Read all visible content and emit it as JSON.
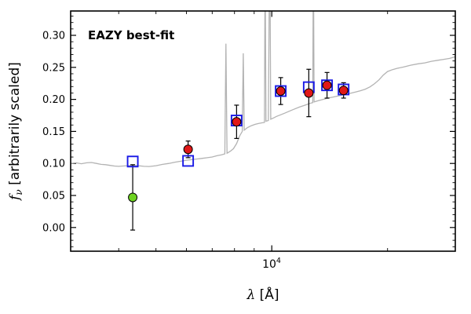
{
  "annotation_note": "static scientific plot, no interactive widgets",
  "labels": {
    "y_math": "f",
    "y_sub": "ν",
    "y_rest": " [arbitrarily scaled]",
    "x_math": "λ",
    "x_rest": " [Å]",
    "xtick_base": "10",
    "xtick_exp": "4"
  },
  "chart_data": {
    "type": "line+scatter",
    "title": "",
    "xlabel": "λ [Å]",
    "ylabel": "fν [arbitrarily scaled]",
    "x_scale": "log",
    "xlim": [
      3000,
      30000
    ],
    "ylim": [
      -0.037,
      0.338
    ],
    "grid": false,
    "legend": "none",
    "annotation": {
      "text": "EAZY best-fit",
      "color": "#ff0000"
    },
    "y_ticks": [
      0.0,
      0.05,
      0.1,
      0.15,
      0.2,
      0.25,
      0.3
    ],
    "y_minor_step": 0.01,
    "x_major_ticks": [
      10000
    ],
    "x_major_tick_labels": [
      "10⁴"
    ],
    "x_minor_ticks": [
      3000,
      4000,
      5000,
      6000,
      7000,
      8000,
      9000,
      20000,
      30000
    ],
    "series": [
      {
        "name": "model-spectrum",
        "type": "line",
        "color": "#b3b3b3",
        "width": 1.3,
        "points": [
          [
            3000,
            0.1
          ],
          [
            3100,
            0.101
          ],
          [
            3200,
            0.0995
          ],
          [
            3300,
            0.101
          ],
          [
            3400,
            0.1015
          ],
          [
            3500,
            0.1
          ],
          [
            3600,
            0.0985
          ],
          [
            3700,
            0.098
          ],
          [
            3800,
            0.097
          ],
          [
            3900,
            0.096
          ],
          [
            4000,
            0.0955
          ],
          [
            4100,
            0.096
          ],
          [
            4200,
            0.0965
          ],
          [
            4350,
            0.097
          ],
          [
            4500,
            0.0965
          ],
          [
            4650,
            0.0955
          ],
          [
            4800,
            0.0952
          ],
          [
            5000,
            0.0965
          ],
          [
            5200,
            0.0985
          ],
          [
            5400,
            0.1
          ],
          [
            5600,
            0.102
          ],
          [
            5800,
            0.1035
          ],
          [
            6000,
            0.105
          ],
          [
            6200,
            0.106
          ],
          [
            6400,
            0.107
          ],
          [
            6600,
            0.108
          ],
          [
            6800,
            0.109
          ],
          [
            7000,
            0.11
          ],
          [
            7200,
            0.112
          ],
          [
            7400,
            0.1135
          ],
          [
            7550,
            0.115
          ],
          [
            7600,
            0.287
          ],
          [
            7650,
            0.116
          ],
          [
            7800,
            0.119
          ],
          [
            7950,
            0.123
          ],
          [
            8100,
            0.131
          ],
          [
            8250,
            0.143
          ],
          [
            8380,
            0.15
          ],
          [
            8430,
            0.272
          ],
          [
            8480,
            0.152
          ],
          [
            8650,
            0.156
          ],
          [
            8850,
            0.159
          ],
          [
            9050,
            0.161
          ],
          [
            9250,
            0.1625
          ],
          [
            9450,
            0.1635
          ],
          [
            9570,
            0.164
          ],
          [
            9610,
            0.43
          ],
          [
            9660,
            0.166
          ],
          [
            9800,
            0.167
          ],
          [
            9880,
            0.47
          ],
          [
            9940,
            0.169
          ],
          [
            10100,
            0.171
          ],
          [
            10300,
            0.1735
          ],
          [
            10550,
            0.176
          ],
          [
            10800,
            0.1785
          ],
          [
            11100,
            0.1815
          ],
          [
            11400,
            0.1845
          ],
          [
            11800,
            0.188
          ],
          [
            12200,
            0.191
          ],
          [
            12600,
            0.194
          ],
          [
            12780,
            0.195
          ],
          [
            12830,
            0.44
          ],
          [
            12880,
            0.196
          ],
          [
            13200,
            0.198
          ],
          [
            13600,
            0.2
          ],
          [
            14000,
            0.202
          ],
          [
            14400,
            0.2035
          ],
          [
            14800,
            0.205
          ],
          [
            15200,
            0.2065
          ],
          [
            15600,
            0.208
          ],
          [
            16000,
            0.2095
          ],
          [
            16500,
            0.2115
          ],
          [
            17000,
            0.2135
          ],
          [
            17500,
            0.216
          ],
          [
            18000,
            0.2195
          ],
          [
            18500,
            0.2245
          ],
          [
            19000,
            0.2305
          ],
          [
            19500,
            0.238
          ],
          [
            20000,
            0.2435
          ],
          [
            20600,
            0.2465
          ],
          [
            21200,
            0.2485
          ],
          [
            22000,
            0.2505
          ],
          [
            23000,
            0.2535
          ],
          [
            24000,
            0.2555
          ],
          [
            25000,
            0.257
          ],
          [
            26000,
            0.2595
          ],
          [
            27000,
            0.261
          ],
          [
            28000,
            0.2625
          ],
          [
            29000,
            0.264
          ],
          [
            30000,
            0.2665
          ]
        ]
      },
      {
        "name": "model-photometry",
        "type": "square",
        "color": "#1a1ae6",
        "size": 13,
        "points": [
          [
            4350,
            0.103
          ],
          [
            6060,
            0.104
          ],
          [
            8100,
            0.167
          ],
          [
            10550,
            0.213
          ],
          [
            12480,
            0.219
          ],
          [
            13920,
            0.222
          ],
          [
            15370,
            0.2155
          ]
        ]
      },
      {
        "name": "observed-photometry",
        "type": "circle",
        "color": "#e01818",
        "radius": 5.5,
        "points": [
          [
            6060,
            0.122,
            0.013
          ],
          [
            8100,
            0.165,
            0.026
          ],
          [
            10550,
            0.213,
            0.021
          ],
          [
            12480,
            0.21,
            0.037
          ],
          [
            13920,
            0.222,
            0.02
          ],
          [
            15370,
            0.214,
            0.012
          ]
        ]
      },
      {
        "name": "observed-photometry-low-sn",
        "type": "circle",
        "color": "#6ed321",
        "radius": 5.5,
        "points": [
          [
            4350,
            0.047,
            0.051
          ]
        ]
      }
    ]
  }
}
